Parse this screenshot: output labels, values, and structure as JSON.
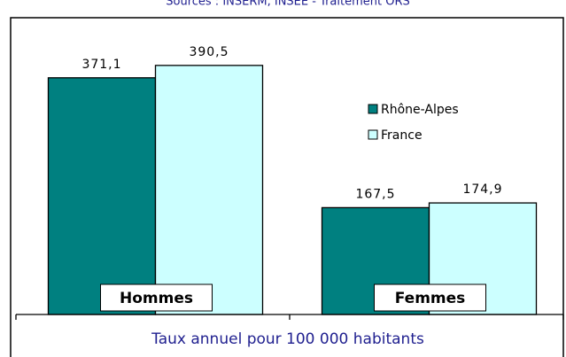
{
  "chart_data": {
    "type": "bar",
    "subtitle": "Sources : INSERM, INSEE - Traitement ORS",
    "x_label": "Taux annuel pour 100 000 habitants",
    "categories": [
      "Hommes",
      "Femmes"
    ],
    "series": [
      {
        "name": "Rhône-Alpes",
        "color": "#008080",
        "values": [
          371.1,
          167.5
        ],
        "value_labels": [
          "371,1",
          "167,5"
        ]
      },
      {
        "name": "France",
        "color": "#ccffff",
        "values": [
          390.5,
          174.9
        ],
        "value_labels": [
          "390,5",
          "174,9"
        ]
      }
    ],
    "ylim": [
      0,
      450
    ],
    "legend": "right"
  }
}
